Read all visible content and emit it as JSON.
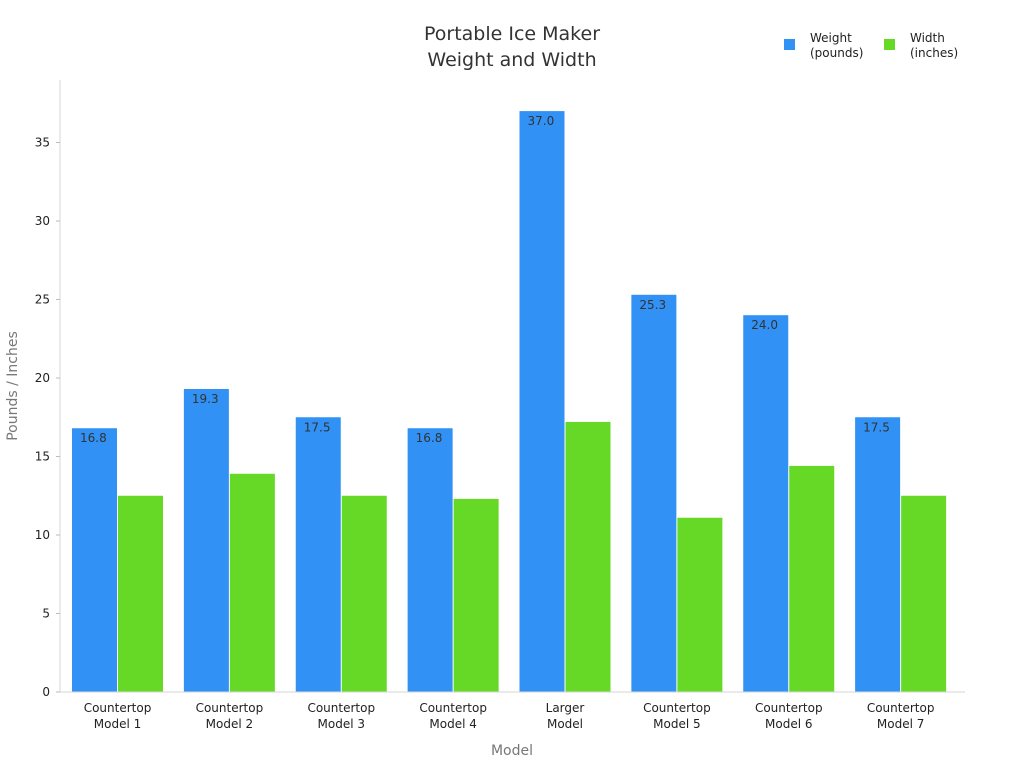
{
  "chart_data": {
    "type": "bar",
    "title": [
      "Portable Ice Maker",
      "Weight and Width"
    ],
    "xlabel": "Model",
    "ylabel": "Pounds / Inches",
    "ylim": [
      0,
      38
    ],
    "yticks": [
      0,
      5,
      10,
      15,
      20,
      25,
      30,
      35
    ],
    "categories": [
      [
        "Countertop",
        "Model 1"
      ],
      [
        "Countertop",
        "Model 2"
      ],
      [
        "Countertop",
        "Model 3"
      ],
      [
        "Countertop",
        "Model 4"
      ],
      [
        "Larger",
        "Model"
      ],
      [
        "Countertop",
        "Model 5"
      ],
      [
        "Countertop",
        "Model 6"
      ],
      [
        "Countertop",
        "Model 7"
      ]
    ],
    "series": [
      {
        "name": [
          "Weight",
          "(pounds)"
        ],
        "color": "#3191f5",
        "values": [
          16.8,
          19.3,
          17.5,
          16.8,
          37.0,
          25.3,
          24.0,
          17.5
        ],
        "data_labels": [
          "16.8",
          "19.3",
          "17.5",
          "16.8",
          "37.0",
          "25.3",
          "24.0",
          "17.5"
        ]
      },
      {
        "name": [
          "Width",
          "(inches)"
        ],
        "color": "#66d927",
        "values": [
          12.5,
          13.9,
          12.5,
          12.3,
          17.2,
          11.1,
          14.4,
          12.5
        ]
      }
    ],
    "legend": "top-right",
    "grid": false
  }
}
